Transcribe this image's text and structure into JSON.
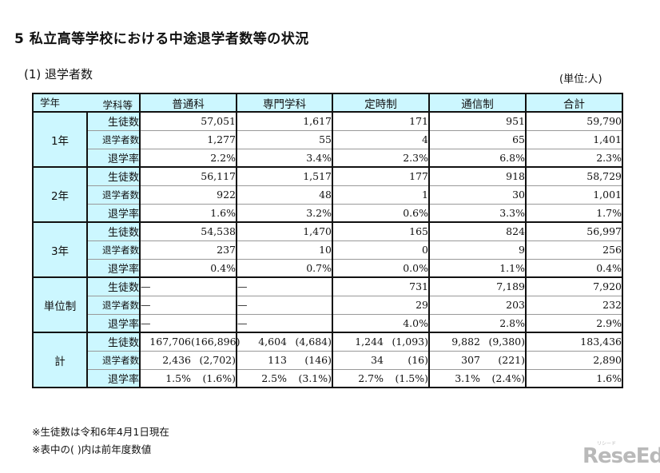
{
  "title": "5 私立高等学校における中途退学者数等の状況",
  "subtitle": "(1) 退学者数",
  "unit": "(単位:人)",
  "header": {
    "diag_top_right": "学科等",
    "diag_bottom_left": "学年",
    "columns": [
      "普通科",
      "専門学科",
      "定時制",
      "通信制",
      "合計"
    ]
  },
  "row_labels": {
    "students": "生徒数",
    "dropouts": "退学者数",
    "rate": "退学率"
  },
  "groups": [
    {
      "label": "1年",
      "rows": [
        [
          "57,051",
          "1,617",
          "171",
          "951",
          "59,790"
        ],
        [
          "1,277",
          "55",
          "4",
          "65",
          "1,401"
        ],
        [
          "2.2%",
          "3.4%",
          "2.3%",
          "6.8%",
          "2.3%"
        ]
      ]
    },
    {
      "label": "2年",
      "rows": [
        [
          "56,117",
          "1,517",
          "177",
          "918",
          "58,729"
        ],
        [
          "922",
          "48",
          "1",
          "30",
          "1,001"
        ],
        [
          "1.6%",
          "3.2%",
          "0.6%",
          "3.3%",
          "1.7%"
        ]
      ]
    },
    {
      "label": "3年",
      "rows": [
        [
          "54,538",
          "1,470",
          "165",
          "824",
          "56,997"
        ],
        [
          "237",
          "10",
          "0",
          "9",
          "256"
        ],
        [
          "0.4%",
          "0.7%",
          "0.0%",
          "1.1%",
          "0.4%"
        ]
      ]
    },
    {
      "label": "単位制",
      "rows": [
        [
          "—",
          "—",
          "731",
          "7,189",
          "7,920"
        ],
        [
          "—",
          "—",
          "29",
          "203",
          "232"
        ],
        [
          "—",
          "—",
          "4.0%",
          "2.8%",
          "2.9%"
        ]
      ]
    },
    {
      "label": "計",
      "rows": [
        [
          [
            "167,706",
            "(166,896)"
          ],
          [
            "4,604",
            "(4,684)"
          ],
          [
            "1,244",
            "(1,093)"
          ],
          [
            "9,882",
            "(9,380)"
          ],
          "183,436"
        ],
        [
          [
            "2,436",
            "(2,702)"
          ],
          [
            "113",
            "(146)"
          ],
          [
            "34",
            "(16)"
          ],
          [
            "307",
            "(221)"
          ],
          "2,890"
        ],
        [
          [
            "1.5%",
            "(1.6%)"
          ],
          [
            "2.5%",
            "(3.1%)"
          ],
          [
            "2.7%",
            "(1.5%)"
          ],
          [
            "3.1%",
            "(2.4%)"
          ],
          "1.6%"
        ]
      ]
    }
  ],
  "notes": [
    "※生徒数は令和6年4月1日現在",
    "※表中の( )内は前年度数値"
  ],
  "logo": {
    "text": "ReseEd",
    "ruby": "リシード"
  },
  "colors": {
    "header_bg": "#ccf7ff",
    "border": "#111111",
    "logo": "#b9b9b9"
  }
}
